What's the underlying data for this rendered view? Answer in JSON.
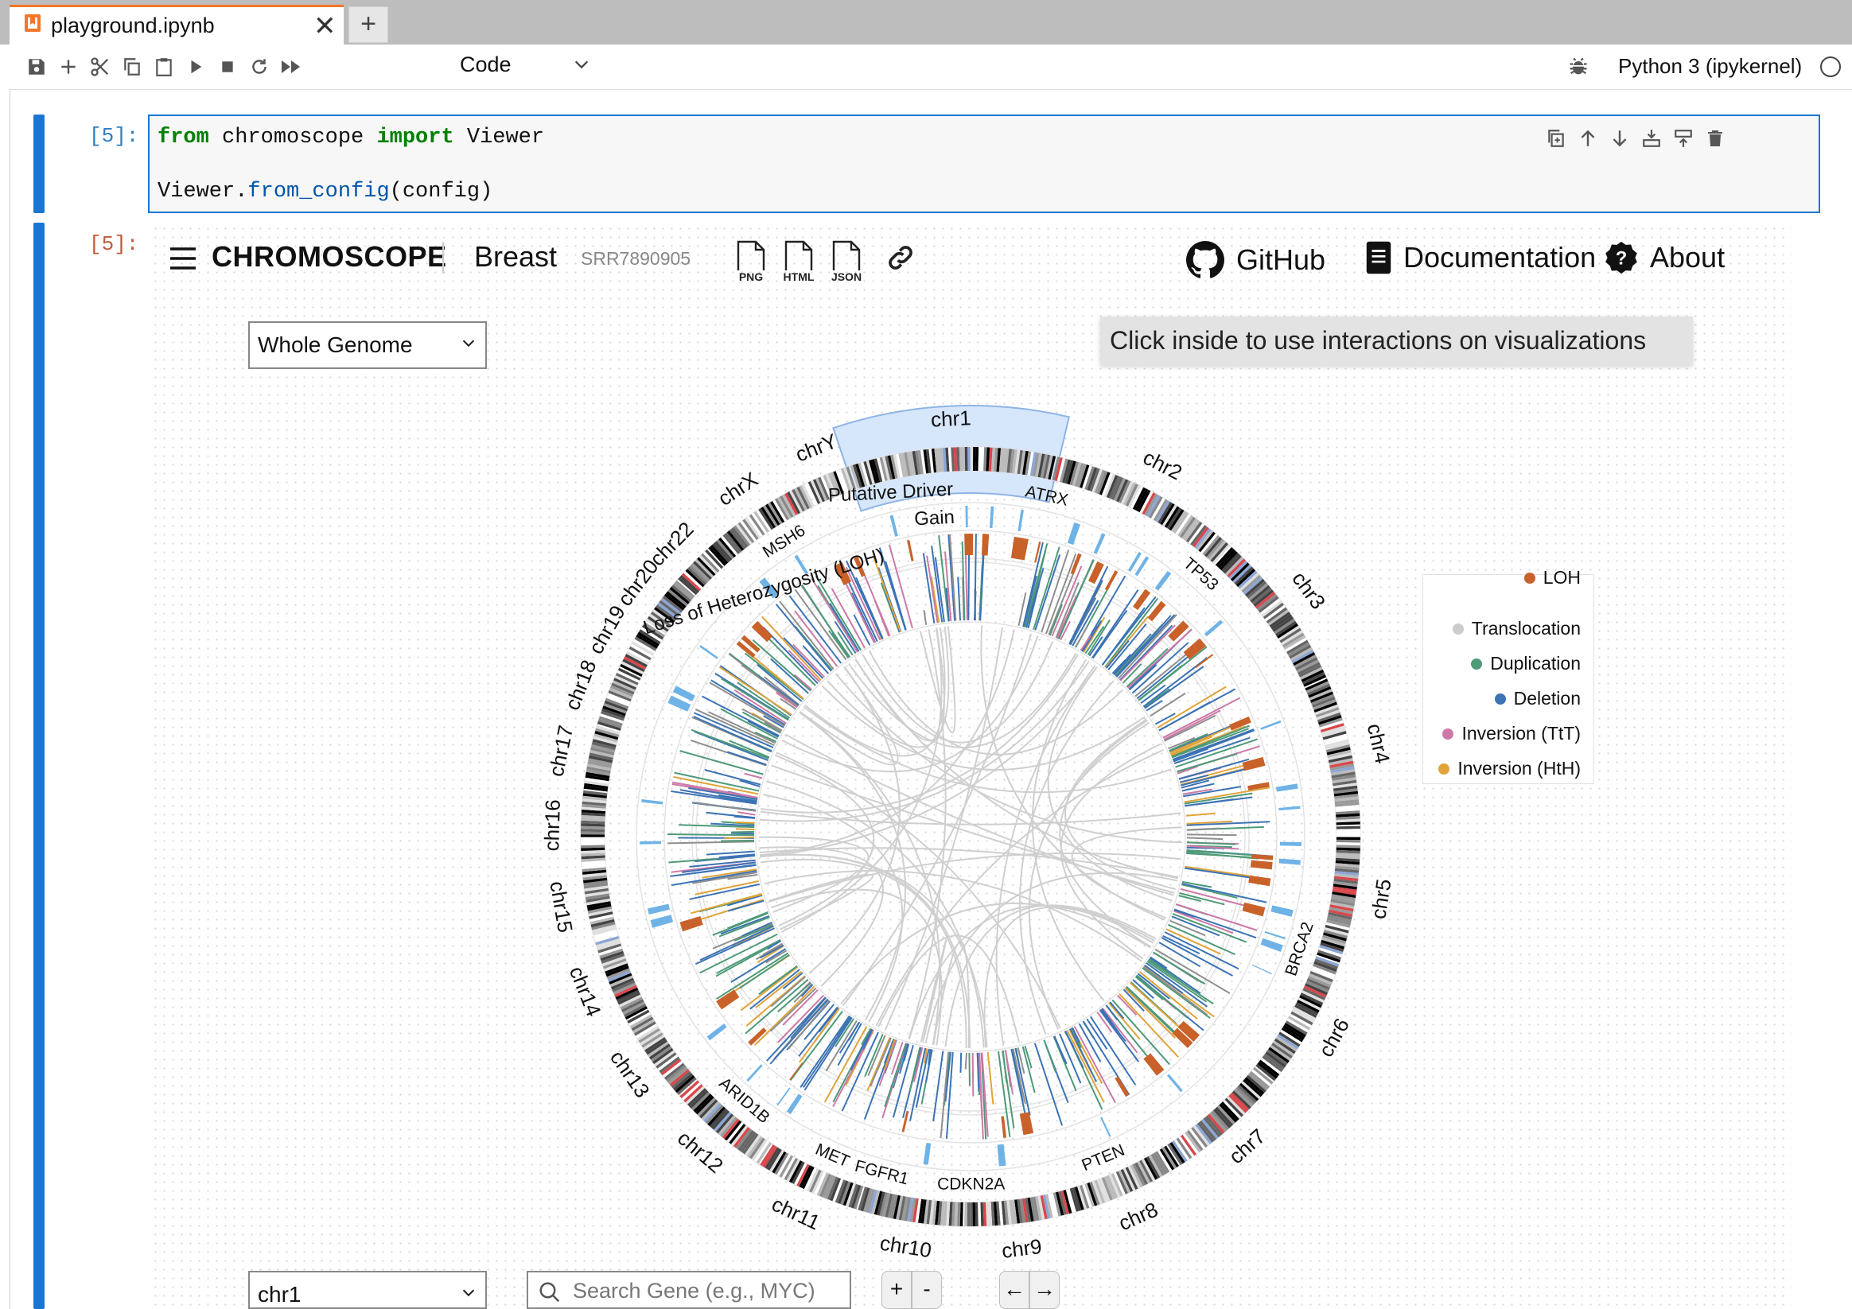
{
  "tab": {
    "title": "playground.ipynb",
    "close": "✕",
    "new_tab": "+"
  },
  "toolbar": {
    "cell_type": "Code",
    "kernel": "Python 3 (ipykernel)"
  },
  "cell": {
    "in_prompt": "[5]:",
    "out_prompt": "[5]:",
    "code": {
      "kw_from": "from",
      "module": "chromoscope",
      "kw_import": "import",
      "name": "Viewer",
      "line2_obj": "Viewer.",
      "line2_fn": "from_config",
      "line2_args": "(config)"
    }
  },
  "app": {
    "title": "CHROMOSCOPE",
    "cancer_type": "Breast",
    "sample_id": "SRR7890905",
    "export_buttons": [
      "PNG",
      "HTML",
      "JSON"
    ],
    "nav": {
      "github": "GitHub",
      "documentation": "Documentation",
      "about": "About"
    }
  },
  "controls": {
    "view_select": "Whole Genome",
    "chrom_select": "chr1",
    "search_placeholder": "Search Gene (e.g., MYC)",
    "zoom_in": "+",
    "zoom_out": "-",
    "pan_left": "←",
    "pan_right": "→"
  },
  "tooltip": "Click inside to use interactions on visualizations",
  "legend": {
    "items": [
      {
        "label": "LOH",
        "color": "#c8622a"
      },
      {
        "label": "Translocation",
        "color": "#cccccc"
      },
      {
        "label": "Duplication",
        "color": "#4e9a78"
      },
      {
        "label": "Deletion",
        "color": "#3c73b4"
      },
      {
        "label": "Inversion (TtT)",
        "color": "#cc79a7"
      },
      {
        "label": "Inversion (HtH)",
        "color": "#e0a43a"
      }
    ]
  },
  "chart_data": {
    "type": "circos",
    "chromosomes": [
      "chr1",
      "chr2",
      "chr3",
      "chr4",
      "chr5",
      "chr6",
      "chr7",
      "chr8",
      "chr9",
      "chr10",
      "chr11",
      "chr12",
      "chr13",
      "chr14",
      "chr15",
      "chr16",
      "chr17",
      "chr18",
      "chr19",
      "chr20",
      "chr22",
      "chrX",
      "chrY"
    ],
    "selected_chromosome": "chr1",
    "track_labels": [
      "Putative Driver",
      "Gain",
      "Loss of Heterozygosity (LOH)"
    ],
    "driver_genes": [
      "ATRX",
      "TP53",
      "BRCA2",
      "PTEN",
      "CDKN2A",
      "FGFR1",
      "MET",
      "ARID1B",
      "MSH6"
    ]
  }
}
